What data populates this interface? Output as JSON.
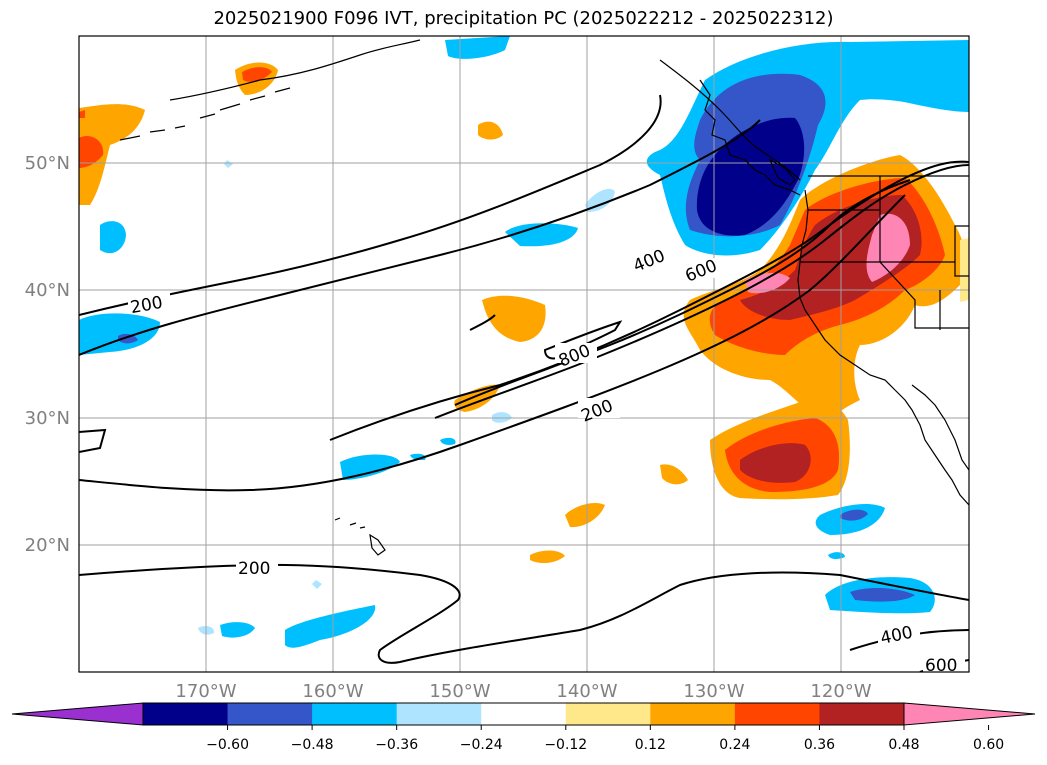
{
  "title": "2025021900 F096 IVT, precipitation PC (2025022212 - 2025022312)",
  "map": {
    "lon_range": [
      -180,
      -110
    ],
    "lat_range": [
      10,
      60
    ],
    "lon_ticks": [
      "170°W",
      "160°W",
      "150°W",
      "140°W",
      "130°W",
      "120°W"
    ],
    "lat_ticks": [
      "20°N",
      "30°N",
      "40°N",
      "50°N"
    ]
  },
  "contour_labels": [
    "200",
    "400",
    "600",
    "800",
    "200",
    "200",
    "400",
    "600"
  ],
  "colorbar": {
    "ticks": [
      "−0.60",
      "−0.48",
      "−0.36",
      "−0.24",
      "−0.12",
      "0.12",
      "0.24",
      "0.36",
      "0.48",
      "0.60"
    ],
    "colors": [
      "#9b30d0",
      "#00008b",
      "#3556c8",
      "#00bfff",
      "#aee4ff",
      "#ffffff",
      "#ffe88a",
      "#ffa500",
      "#ff4500",
      "#b22222",
      "#ff86b4"
    ]
  }
}
